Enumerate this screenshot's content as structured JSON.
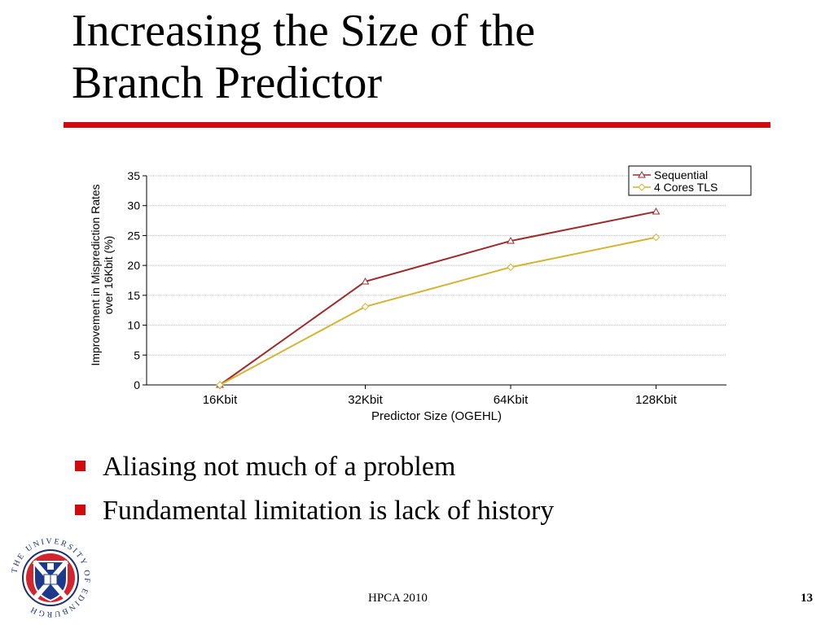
{
  "slide": {
    "title_lines": [
      "Increasing the Size of the",
      "Branch Predictor"
    ],
    "bullets": [
      "Aliasing not much of a problem",
      "Fundamental limitation is lack of history"
    ],
    "footer": "HPCA 2010",
    "page_number": "13",
    "accent_color": "#d10a10"
  },
  "logo": {
    "icon": "university-of-edinburgh-crest-icon",
    "ring_text": "THE UNIVERSITY OF EDINBURGH"
  },
  "chart_data": {
    "type": "line",
    "title": "",
    "xlabel": "Predictor Size (OGEHL)",
    "ylabel_lines": [
      "Improvement in Misprediction Rates",
      "over 16Kbit (%)"
    ],
    "categories": [
      "16Kbit",
      "32Kbit",
      "64Kbit",
      "128Kbit"
    ],
    "ylim": [
      0,
      35
    ],
    "yticks": [
      0,
      5,
      10,
      15,
      20,
      25,
      30,
      35
    ],
    "grid": true,
    "legend_position": "top-right",
    "series": [
      {
        "name": "Sequential",
        "values": [
          0,
          17.3,
          24.1,
          29.0
        ],
        "color": "#9e2b2b",
        "marker": "triangle"
      },
      {
        "name": "4 Cores TLS",
        "values": [
          0,
          13.1,
          19.7,
          24.7
        ],
        "color": "#d4b434",
        "marker": "diamond"
      }
    ]
  }
}
